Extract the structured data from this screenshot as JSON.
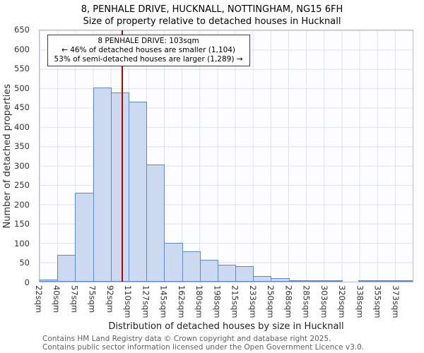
{
  "annotation": {
    "line1": "8 PENHALE DRIVE: 103sqm",
    "line2": "← 46% of detached houses are smaller (1,104)",
    "line3": "53% of semi-detached houses are larger (1,289) →"
  },
  "footer": {
    "line1": "Contains HM Land Registry data © Crown copyright and database right 2025.",
    "line2": "Contains public sector information licensed under the Open Government Licence v3.0."
  },
  "chart_data": {
    "type": "bar",
    "title": "8, PENHALE DRIVE, HUCKNALL, NOTTINGHAM, NG15 6FH",
    "subtitle": "Size of property relative to detached houses in Hucknall",
    "categories": [
      "22sqm",
      "40sqm",
      "57sqm",
      "75sqm",
      "92sqm",
      "110sqm",
      "127sqm",
      "145sqm",
      "162sqm",
      "180sqm",
      "198sqm",
      "215sqm",
      "233sqm",
      "250sqm",
      "268sqm",
      "285sqm",
      "303sqm",
      "320sqm",
      "338sqm",
      "355sqm",
      "373sqm"
    ],
    "values": [
      5,
      70,
      230,
      503,
      490,
      465,
      303,
      100,
      79,
      57,
      44,
      40,
      14,
      10,
      3,
      2,
      1,
      0,
      1,
      2,
      4
    ],
    "xlabel": "Distribution of detached houses by size in Hucknall",
    "ylabel": "Number of detached properties",
    "ylim": [
      0,
      650
    ],
    "yticks": [
      0,
      50,
      100,
      150,
      200,
      250,
      300,
      350,
      400,
      450,
      500,
      550,
      600,
      650
    ],
    "grid": true,
    "legend": false,
    "marker": {
      "label": "103sqm",
      "sqm": 103
    },
    "colors": {
      "bar_fill": "#ccd9f0",
      "bar_border": "#5e87c4",
      "marker_line": "#b30000",
      "annotation_border": "#cc0000",
      "grid": "#d9e0ee"
    }
  }
}
